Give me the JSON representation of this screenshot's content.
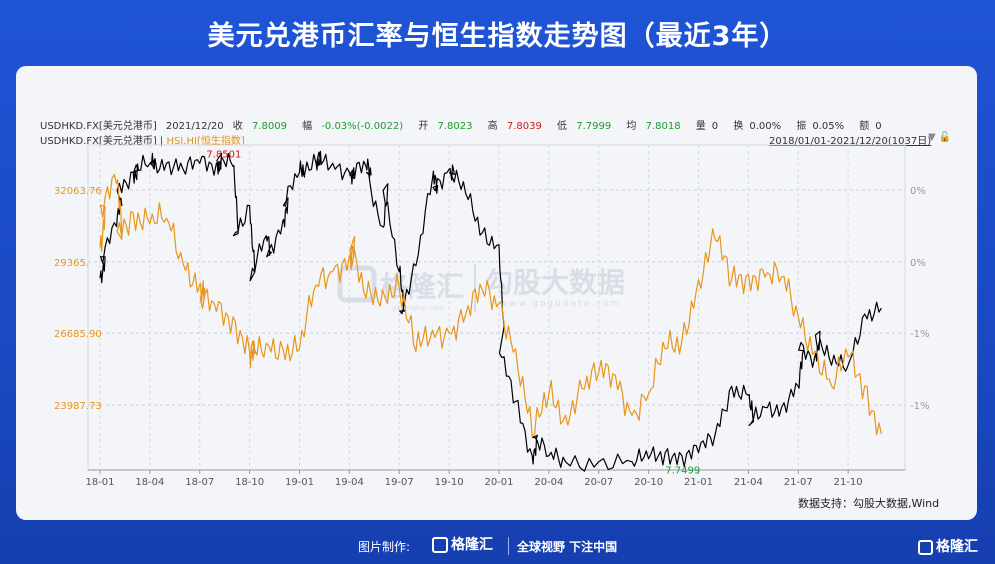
{
  "header": {
    "title": "美元兑港币汇率与恒生指数走势图（最近3年）"
  },
  "info": {
    "symbol": "USDHKD.FX[美元兑港币]",
    "date": "2021/12/20",
    "close_label": "收",
    "close": "7.8009",
    "change_label": "幅",
    "change": "-0.03%(-0.0022)",
    "open_label": "开",
    "open": "7.8023",
    "high_label": "高",
    "high": "7.8039",
    "low_label": "低",
    "low": "7.7999",
    "avg_label": "均",
    "avg": "7.8018",
    "vol_label": "量",
    "vol": "0",
    "turnover_label": "换",
    "turnover": "0.00%",
    "amplitude_label": "振",
    "amplitude": "0.05%",
    "amount_label": "额",
    "amount": "0",
    "series_usd": "USDHKD.FX[美元兑港币]",
    "separator": "|",
    "series_hsi": "HSI.HI[恒生指数]",
    "range": "2018/01/01-2021/12/20(1037日)"
  },
  "watermark": {
    "brand": "格隆汇",
    "domain1": "gelonghui.com",
    "brand2": "勾股大数据",
    "domain2": "www.gogudata.com"
  },
  "source": "数据支持：勾股大数据,Wind",
  "footer": {
    "made_by": "图片制作:",
    "logo": "格隆汇",
    "logo_sub": "gelonghui.com",
    "slogan": "全球视野 下注中国",
    "corner": "格隆汇"
  },
  "colors": {
    "usd": "#000000",
    "hsi": "#e8951a",
    "title_bg": "#1f54d6",
    "max_label": "#c71d1d",
    "min_label": "#1e9a2e"
  },
  "chart_data": {
    "type": "line",
    "x_ticks": [
      "18-01",
      "18-04",
      "18-07",
      "18-10",
      "19-01",
      "19-04",
      "19-07",
      "19-10",
      "20-01",
      "20-04",
      "20-07",
      "20-10",
      "21-01",
      "21-04",
      "21-07",
      "21-10"
    ],
    "left_axis_ticks": [
      "32063.76",
      "29365.",
      "26685.90",
      "23987.73"
    ],
    "left_axis_values": [
      32063.76,
      29365,
      26685.9,
      23987.73
    ],
    "right_axis_ticks": [
      "0%",
      "0%",
      "-1%",
      "-1%"
    ],
    "max_label": "7.8501",
    "min_label": "7.7499",
    "usd_range": [
      7.7499,
      7.8501
    ],
    "series": [
      {
        "name": "USDHKD.FX[美元兑港币]",
        "x": [
          "2018-01",
          "2018-01",
          "2018-02",
          "2018-02",
          "2018-03",
          "2018-03",
          "2018-04",
          "2018-04",
          "2018-05",
          "2018-06",
          "2018-07",
          "2018-08",
          "2018-08",
          "2018-09",
          "2018-09",
          "2018-10",
          "2018-10",
          "2018-11",
          "2018-11",
          "2018-12",
          "2018-12",
          "2019-01",
          "2019-01",
          "2019-02",
          "2019-02",
          "2019-03",
          "2019-04",
          "2019-04",
          "2019-05",
          "2019-05",
          "2019-06",
          "2019-06",
          "2019-07",
          "2019-07",
          "2019-08",
          "2019-09",
          "2019-09",
          "2019-10",
          "2019-10",
          "2019-11",
          "2019-12",
          "2020-01",
          "2020-01",
          "2020-02",
          "2020-03",
          "2020-03",
          "2020-04",
          "2020-05",
          "2020-07",
          "2020-09",
          "2020-10",
          "2020-11",
          "2020-12",
          "2021-01",
          "2021-02",
          "2021-03",
          "2021-04",
          "2021-04",
          "2021-05",
          "2021-06",
          "2021-07",
          "2021-07",
          "2021-08",
          "2021-08",
          "2021-09",
          "2021-10",
          "2021-11",
          "2021-12"
        ],
        "values": [
          7.811,
          7.818,
          7.828,
          7.84,
          7.846,
          7.846,
          7.849,
          7.849,
          7.849,
          7.847,
          7.849,
          7.849,
          7.85,
          7.848,
          7.825,
          7.835,
          7.81,
          7.825,
          7.818,
          7.83,
          7.835,
          7.846,
          7.848,
          7.849,
          7.849,
          7.849,
          7.846,
          7.845,
          7.848,
          7.846,
          7.828,
          7.84,
          7.813,
          7.8,
          7.815,
          7.844,
          7.841,
          7.847,
          7.846,
          7.839,
          7.826,
          7.822,
          7.786,
          7.77,
          7.752,
          7.758,
          7.752,
          7.75,
          7.75,
          7.75,
          7.751,
          7.753,
          7.752,
          7.753,
          7.759,
          7.775,
          7.772,
          7.762,
          7.768,
          7.768,
          7.775,
          7.787,
          7.785,
          7.792,
          7.782,
          7.782,
          7.799,
          7.801
        ]
      },
      {
        "name": "HSI.HI[恒生指数]",
        "x": [
          "2018-01",
          "2018-01",
          "2018-02",
          "2018-02",
          "2018-03",
          "2018-04",
          "2018-05",
          "2018-06",
          "2018-07",
          "2018-07",
          "2018-08",
          "2018-09",
          "2018-10",
          "2018-10",
          "2018-11",
          "2018-12",
          "2019-01",
          "2019-02",
          "2019-03",
          "2019-04",
          "2019-04",
          "2019-05",
          "2019-06",
          "2019-07",
          "2019-08",
          "2019-09",
          "2019-10",
          "2019-11",
          "2019-12",
          "2020-01",
          "2020-02",
          "2020-03",
          "2020-04",
          "2020-05",
          "2020-06",
          "2020-07",
          "2020-08",
          "2020-09",
          "2020-10",
          "2020-11",
          "2020-12",
          "2021-01",
          "2021-02",
          "2021-03",
          "2021-04",
          "2021-05",
          "2021-06",
          "2021-07",
          "2021-08",
          "2021-09",
          "2021-10",
          "2021-11",
          "2021-12"
        ],
        "values": [
          29900,
          31500,
          32300,
          30500,
          31200,
          30800,
          31000,
          29300,
          28500,
          28000,
          27500,
          27300,
          26000,
          25700,
          26300,
          26100,
          26100,
          28500,
          29000,
          29600,
          29800,
          28000,
          28300,
          28400,
          26000,
          26800,
          26700,
          27400,
          28300,
          27800,
          26100,
          22800,
          24400,
          23600,
          24600,
          25200,
          25100,
          23600,
          24400,
          26100,
          26400,
          28700,
          30200,
          28700,
          28900,
          28800,
          28800,
          27300,
          26000,
          24700,
          25800,
          24700,
          22900
        ]
      }
    ]
  }
}
